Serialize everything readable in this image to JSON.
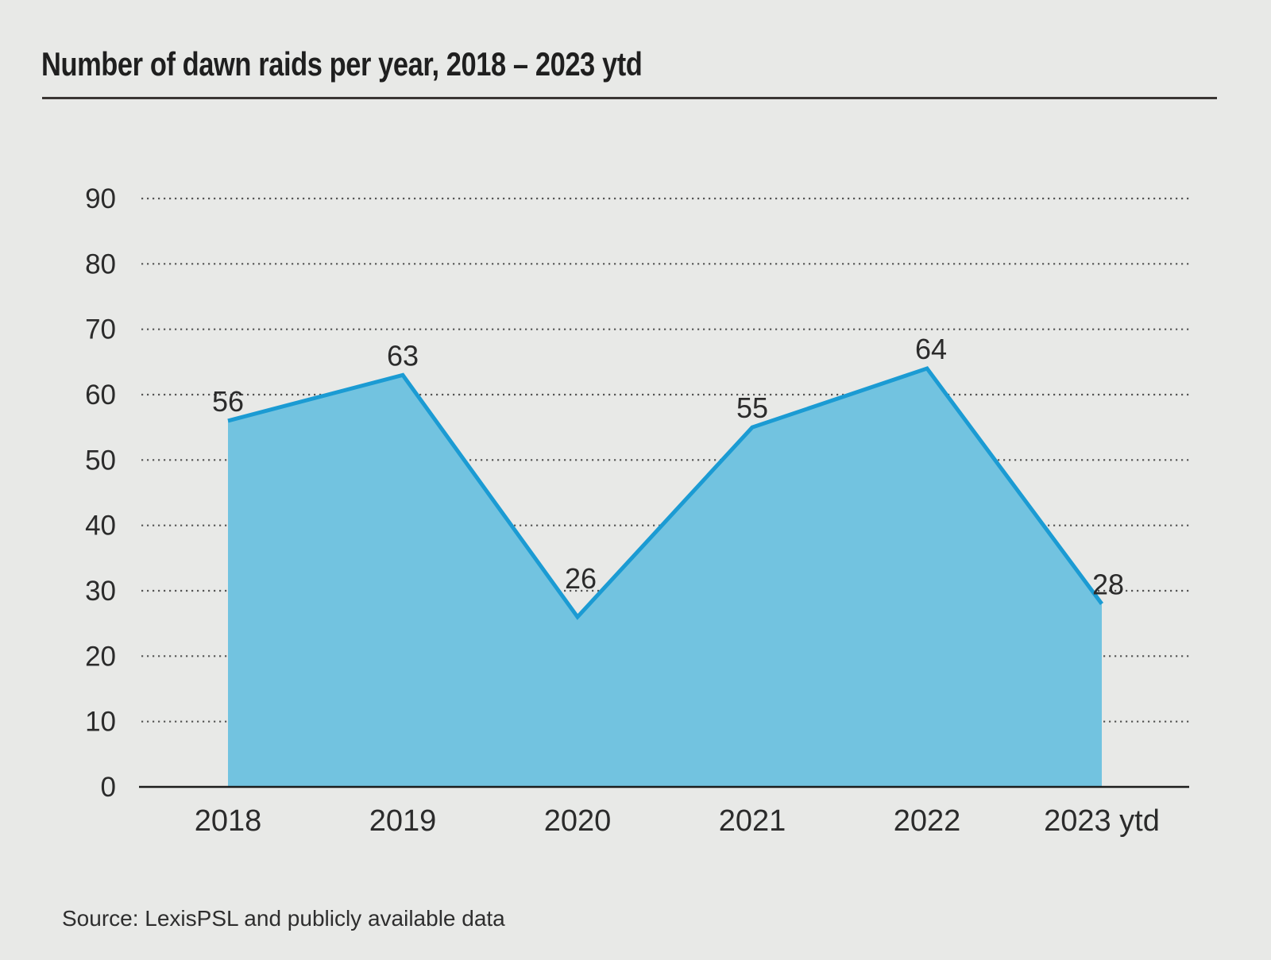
{
  "title": "Number of dawn raids per year, 2018 – 2023 ytd",
  "source": "Source: LexisPSL and publicly available data",
  "chart_data": {
    "type": "area",
    "title": "Number of dawn raids per year, 2018 – 2023 ytd",
    "categories": [
      "2018",
      "2019",
      "2020",
      "2021",
      "2022",
      "2023 ytd"
    ],
    "values": [
      56,
      63,
      26,
      55,
      64,
      28
    ],
    "data_labels": [
      "56",
      "63",
      "26",
      "55",
      "64",
      "28"
    ],
    "y_ticks": [
      0,
      10,
      20,
      30,
      40,
      50,
      60,
      70,
      80,
      90
    ],
    "ylim": [
      0,
      90
    ],
    "xlabel": "",
    "ylabel": "",
    "grid": "horizontal-dotted",
    "legend": "none",
    "colors": {
      "background": "#e8e9e7",
      "area_fill": "#72c3e0",
      "area_stroke": "#1b9bd3",
      "gridline": "#555555",
      "axis_line": "#1c1c1c",
      "tick_text": "#2b2b2b",
      "label_text": "#2b2b2b",
      "title_text": "#1f1f1f"
    }
  }
}
